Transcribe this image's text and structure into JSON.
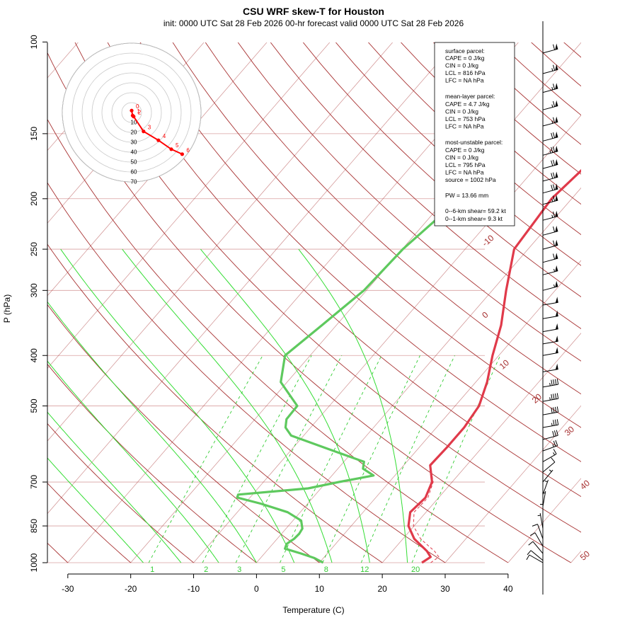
{
  "title": "CSU WRF skew-T for Houston",
  "subtitle": "init: 0000 UTC Sat 28 Feb 2026     00-hr forecast valid 0000 UTC Sat 28 Feb 2026",
  "colors": {
    "temperature": "#e03a4a",
    "dewpoint": "#5ec95e",
    "dry_adiabat": "#a83232",
    "isotherm": "#a83232",
    "moist_adiabat": "#33dd33",
    "mixing_ratio": "#33cc33",
    "isobar": "#d9a0a0",
    "hodograph": "#ff0000"
  },
  "chart_data": {
    "type": "line",
    "title": "CSU WRF skew-T for Houston",
    "xlabel": "Temperature (C)",
    "ylabel": "P (hPa)",
    "xlim": [
      -33,
      45
    ],
    "ylim": [
      1000,
      100
    ],
    "y_scale": "log",
    "x_ticks": [
      -30,
      -20,
      -10,
      0,
      10,
      20,
      30,
      40
    ],
    "pressure_ticks": [
      100,
      150,
      200,
      250,
      300,
      400,
      500,
      700,
      850,
      1000
    ],
    "isotherm_labels": [
      -10,
      0,
      10,
      20,
      30,
      40,
      50
    ],
    "mixing_ratio_labels": [
      "1",
      "2",
      "3",
      "5",
      "8",
      "12",
      "20"
    ],
    "series": [
      {
        "name": "temperature",
        "points": [
          {
            "p": 1000,
            "x": 26.3
          },
          {
            "p": 975,
            "x": 26.9
          },
          {
            "p": 950,
            "x": 25.5
          },
          {
            "p": 900,
            "x": 21.8
          },
          {
            "p": 850,
            "x": 19.1
          },
          {
            "p": 800,
            "x": 17.5
          },
          {
            "p": 750,
            "x": 17.9
          },
          {
            "p": 700,
            "x": 16.8
          },
          {
            "p": 650,
            "x": 14.2
          },
          {
            "p": 600,
            "x": 14.4
          },
          {
            "p": 550,
            "x": 14.4
          },
          {
            "p": 500,
            "x": 13.8
          },
          {
            "p": 450,
            "x": 11.8
          },
          {
            "p": 400,
            "x": 9.0
          },
          {
            "p": 350,
            "x": 6.2
          },
          {
            "p": 300,
            "x": 2.2
          },
          {
            "p": 250,
            "x": -2.2
          },
          {
            "p": 200,
            "x": -3.2
          },
          {
            "p": 175,
            "x": -2.3
          },
          {
            "p": 150,
            "x": -0.5
          },
          {
            "p": 125,
            "x": 2.4
          },
          {
            "p": 105,
            "x": 4.6
          }
        ]
      },
      {
        "name": "dewpoint",
        "points": [
          {
            "p": 1000,
            "x": 10.6
          },
          {
            "p": 980,
            "x": 8.6
          },
          {
            "p": 960,
            "x": 5.8
          },
          {
            "p": 940,
            "x": 2.6
          },
          {
            "p": 920,
            "x": 2.2
          },
          {
            "p": 900,
            "x": 2.7
          },
          {
            "p": 880,
            "x": 2.8
          },
          {
            "p": 860,
            "x": 2.6
          },
          {
            "p": 830,
            "x": 1.3
          },
          {
            "p": 800,
            "x": -2.0
          },
          {
            "p": 770,
            "x": -7.5
          },
          {
            "p": 750,
            "x": -12.0
          },
          {
            "p": 740,
            "x": -12.3
          },
          {
            "p": 720,
            "x": -2.0
          },
          {
            "p": 700,
            "x": 2.0
          },
          {
            "p": 680,
            "x": 6.6
          },
          {
            "p": 660,
            "x": 4.0
          },
          {
            "p": 640,
            "x": 3.2
          },
          {
            "p": 620,
            "x": -1.0
          },
          {
            "p": 590,
            "x": -7.5
          },
          {
            "p": 570,
            "x": -12.0
          },
          {
            "p": 550,
            "x": -14.0
          },
          {
            "p": 530,
            "x": -15.0
          },
          {
            "p": 500,
            "x": -15.1
          },
          {
            "p": 450,
            "x": -21.0
          },
          {
            "p": 400,
            "x": -24.0
          },
          {
            "p": 350,
            "x": -22.3
          },
          {
            "p": 300,
            "x": -20.4
          },
          {
            "p": 250,
            "x": -19.9
          },
          {
            "p": 200,
            "x": -17.8
          },
          {
            "p": 180,
            "x": -18.0
          },
          {
            "p": 170,
            "x": -18.6
          }
        ]
      }
    ]
  },
  "info_box": {
    "surface": {
      "title": "surface parcel:",
      "lines": [
        "CAPE = 0 J/kg",
        "CIN = 0 J/kg",
        "LCL = 816 hPa",
        "LFC = NA hPa"
      ]
    },
    "mean_layer": {
      "title": "mean-layer parcel:",
      "lines": [
        "CAPE = 4.7 J/kg",
        "CIN = 0 J/kg",
        "LCL = 753 hPa",
        "LFC = NA hPa"
      ]
    },
    "most_unstable": {
      "title": "most-unstable parcel:",
      "lines": [
        "CAPE = 0 J/kg",
        "CIN = 0 J/kg",
        "LCL = 795 hPa",
        "LFC = NA hPa",
        "source = 1002 hPa"
      ]
    },
    "pw": "PW =  13.66 mm",
    "shear_06": "0--6-km shear= 59.2 kt",
    "shear_01": "0--1-km shear= 9.3 kt"
  },
  "hodograph": {
    "ring_labels": [
      "10",
      "20",
      "30",
      "40",
      "50",
      "60",
      "70"
    ],
    "point_labels": [
      "0",
      "1",
      "2",
      "3",
      "4",
      "5",
      "6"
    ],
    "points": [
      {
        "u": 0.0,
        "v": 2.0
      },
      {
        "u": 1.0,
        "v": -3.0
      },
      {
        "u": 2.0,
        "v": -4.0
      },
      {
        "u": 12.0,
        "v": -19.0
      },
      {
        "u": 27.0,
        "v": -28.0
      },
      {
        "u": 40.0,
        "v": -37.0
      },
      {
        "u": 51.0,
        "v": -42.0
      }
    ]
  },
  "winds": [
    {
      "p": 105,
      "dir": 255,
      "spd": 60
    },
    {
      "p": 115,
      "dir": 255,
      "spd": 65
    },
    {
      "p": 125,
      "dir": 255,
      "spd": 65
    },
    {
      "p": 135,
      "dir": 255,
      "spd": 65
    },
    {
      "p": 145,
      "dir": 255,
      "spd": 65
    },
    {
      "p": 155,
      "dir": 255,
      "spd": 70
    },
    {
      "p": 165,
      "dir": 255,
      "spd": 75
    },
    {
      "p": 175,
      "dir": 255,
      "spd": 70
    },
    {
      "p": 185,
      "dir": 255,
      "spd": 70
    },
    {
      "p": 195,
      "dir": 255,
      "spd": 70
    },
    {
      "p": 205,
      "dir": 255,
      "spd": 65
    },
    {
      "p": 220,
      "dir": 255,
      "spd": 65
    },
    {
      "p": 235,
      "dir": 255,
      "spd": 60
    },
    {
      "p": 250,
      "dir": 255,
      "spd": 60
    },
    {
      "p": 265,
      "dir": 255,
      "spd": 60
    },
    {
      "p": 280,
      "dir": 255,
      "spd": 55
    },
    {
      "p": 300,
      "dir": 255,
      "spd": 55
    },
    {
      "p": 320,
      "dir": 260,
      "spd": 50
    },
    {
      "p": 340,
      "dir": 260,
      "spd": 50
    },
    {
      "p": 360,
      "dir": 260,
      "spd": 50
    },
    {
      "p": 380,
      "dir": 260,
      "spd": 50
    },
    {
      "p": 400,
      "dir": 260,
      "spd": 50
    },
    {
      "p": 430,
      "dir": 260,
      "spd": 50
    },
    {
      "p": 460,
      "dir": 260,
      "spd": 45
    },
    {
      "p": 490,
      "dir": 260,
      "spd": 45
    },
    {
      "p": 520,
      "dir": 260,
      "spd": 40
    },
    {
      "p": 550,
      "dir": 260,
      "spd": 35
    },
    {
      "p": 580,
      "dir": 255,
      "spd": 30
    },
    {
      "p": 610,
      "dir": 250,
      "spd": 25
    },
    {
      "p": 640,
      "dir": 240,
      "spd": 15
    },
    {
      "p": 670,
      "dir": 230,
      "spd": 10
    },
    {
      "p": 700,
      "dir": 220,
      "spd": 5
    },
    {
      "p": 740,
      "dir": 200,
      "spd": 5
    },
    {
      "p": 780,
      "dir": 190,
      "spd": 5
    },
    {
      "p": 820,
      "dir": 180,
      "spd": 5
    },
    {
      "p": 860,
      "dir": 170,
      "spd": 5
    },
    {
      "p": 900,
      "dir": 160,
      "spd": 10
    },
    {
      "p": 930,
      "dir": 150,
      "spd": 10
    },
    {
      "p": 960,
      "dir": 140,
      "spd": 10
    },
    {
      "p": 990,
      "dir": 130,
      "spd": 10
    },
    {
      "p": 1000,
      "dir": 120,
      "spd": 10
    }
  ]
}
